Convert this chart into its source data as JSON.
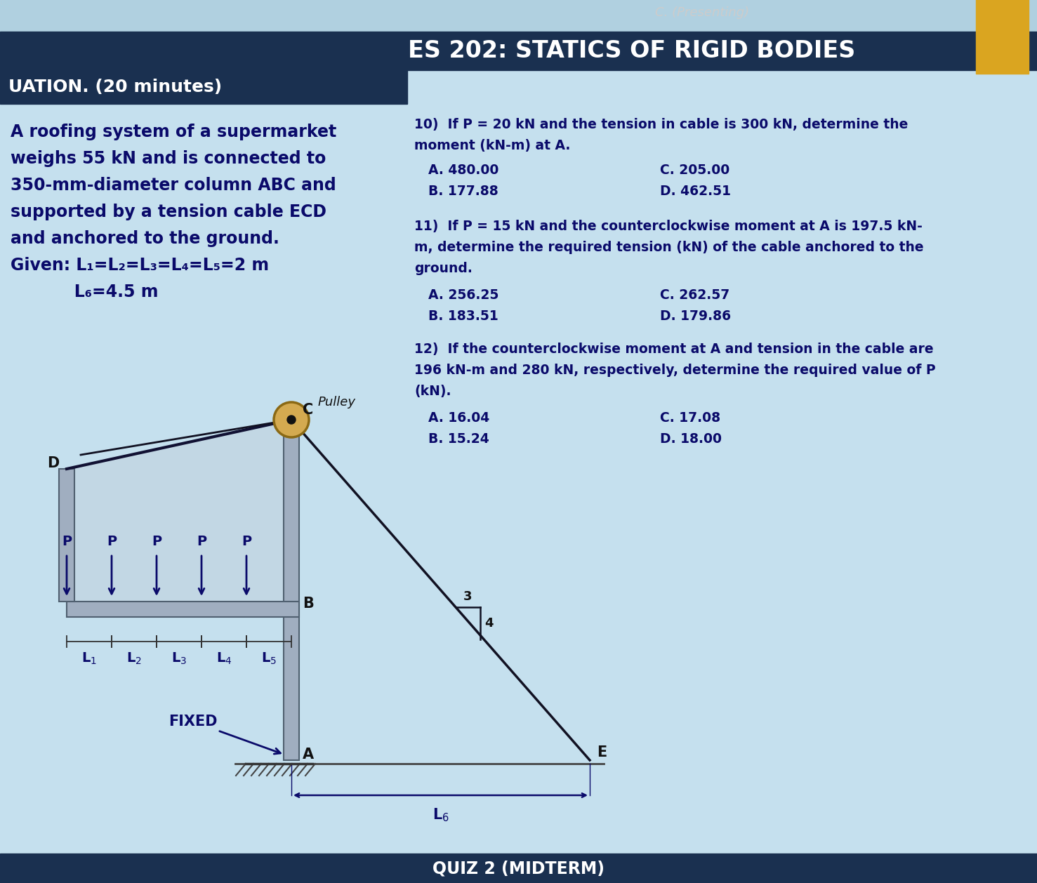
{
  "bg_color": "#b8d8e8",
  "bg_color_inner": "#c5e0ee",
  "dark_header_color": "#1a3050",
  "text_dark_blue": "#0a0a6a",
  "header_text": "ES 202: STATICS OF RIGID BODIES",
  "header_sub": "C. (Presenting)",
  "title_text": "UATION. (20 minutes)",
  "problem_lines": [
    "A roofing system of a supermarket",
    "weighs 55 kN and is connected to",
    "350-mm-diameter column ABC and",
    "supported by a tension cable ECD",
    "and anchored to the ground.",
    "Given: L₁=L₂=L₃=L₄=L₅=2 m",
    "           L₆=4.5 m"
  ],
  "q10_lines": [
    "10)  If P = 20 kN and the tension in cable is 300 kN, determine the",
    "moment (kN-m) at A."
  ],
  "q10_A": "A. 480.00",
  "q10_B": "B. 177.88",
  "q10_C": "C. 205.00",
  "q10_D": "D. 462.51",
  "q11_lines": [
    "11)  If P = 15 kN and the counterclockwise moment at A is 197.5 kN-",
    "m, determine the required tension (kN) of the cable anchored to the",
    "ground."
  ],
  "q11_A": "A. 256.25",
  "q11_B": "B. 183.51",
  "q11_C": "C. 262.57",
  "q11_D": "D. 179.86",
  "q12_lines": [
    "12)  If the counterclockwise moment at A and tension in the cable are",
    "196 kN-m and 280 kN, respectively, determine the required value of P",
    "(kN)."
  ],
  "q12_A": "A. 16.04",
  "q12_B": "B. 15.24",
  "q12_C": "C. 17.08",
  "q12_D": "D. 18.00",
  "footer_text": "QUIZ 2 (MIDTERM)",
  "pulley_color": "#d4aa50",
  "pulley_edge": "#8B6914",
  "beam_color": "#a0aec0",
  "beam_edge": "#506070",
  "cable_color": "#111122",
  "diagram_line_color": "#111133"
}
